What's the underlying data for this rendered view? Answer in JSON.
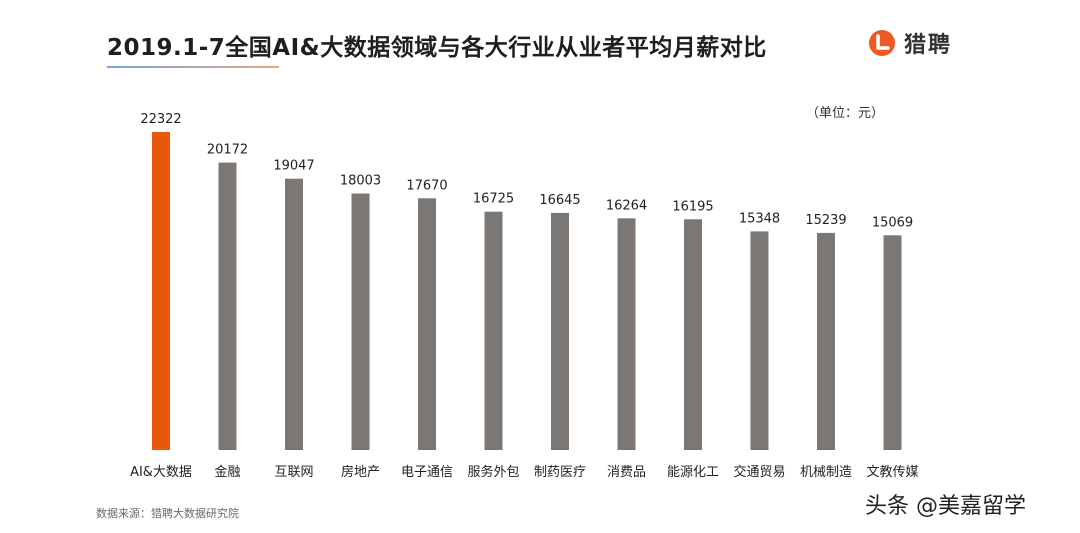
{
  "header": {
    "title": "2019.1-7全国AI&大数据领域与各大行业从业者平均月薪对比",
    "brand_name": "猎聘",
    "brand_color": "#F05A22"
  },
  "unit_label": "（单位：元）",
  "source_note": "数据来源：猎聘大数据研究院",
  "watermark": "头条 @美嘉留学",
  "colors": {
    "highlight_bar": "#E8580C",
    "default_bar": "#7B7774"
  },
  "chart_data": {
    "type": "bar",
    "categories": [
      "AI&大数据",
      "金融",
      "互联网",
      "房地产",
      "电子通信",
      "服务外包",
      "制药医疗",
      "消费品",
      "能源化工",
      "交通贸易",
      "机械制造",
      "文教传媒"
    ],
    "values": [
      22322,
      20172,
      19047,
      18003,
      17670,
      16725,
      16645,
      16264,
      16195,
      15348,
      15239,
      15069
    ],
    "highlight_index": 0,
    "ylabel": "",
    "ylim": [
      0,
      22322
    ],
    "grid": false,
    "legend": "none",
    "data_labels": true
  }
}
